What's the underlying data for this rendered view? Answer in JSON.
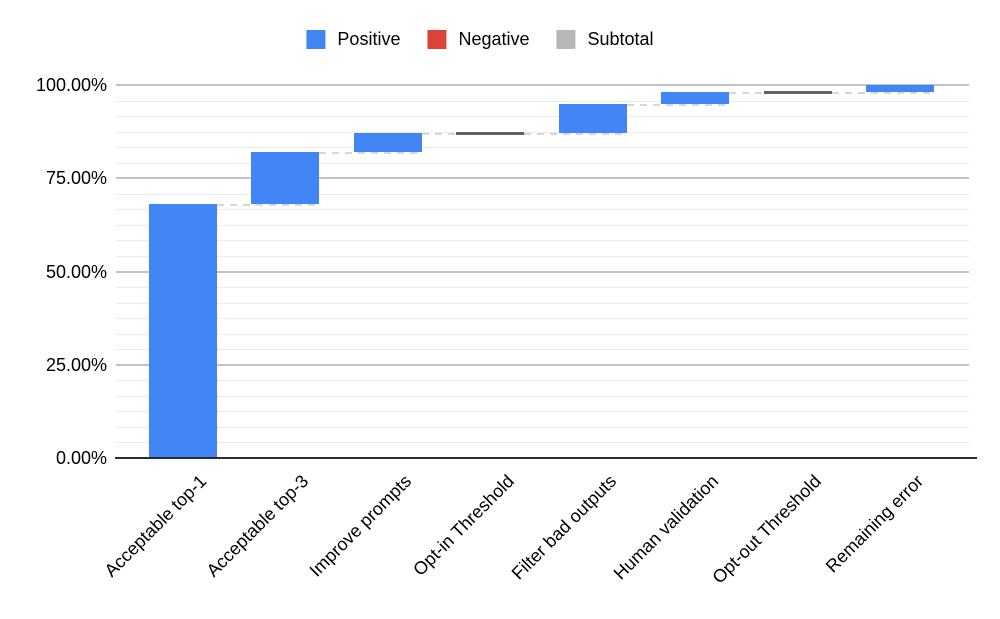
{
  "chart_data": {
    "type": "waterfall",
    "title": "",
    "categories": [
      "Acceptable top-1",
      "Acceptable top-3",
      "Improve prompts",
      "Opt-in Threshold",
      "Filter bad outputs",
      "Human validation",
      "Opt-out Threshold",
      "Remaining error"
    ],
    "bars": [
      {
        "category": "Acceptable top-1",
        "kind": "positive",
        "start": 0,
        "end": 68,
        "delta": 68
      },
      {
        "category": "Acceptable top-3",
        "kind": "positive",
        "start": 68,
        "end": 82,
        "delta": 14
      },
      {
        "category": "Improve prompts",
        "kind": "positive",
        "start": 82,
        "end": 87,
        "delta": 5
      },
      {
        "category": "Opt-in Threshold",
        "kind": "subtotal",
        "start": 87,
        "end": 87,
        "delta": 0
      },
      {
        "category": "Filter bad outputs",
        "kind": "positive",
        "start": 87,
        "end": 95,
        "delta": 8
      },
      {
        "category": "Human validation",
        "kind": "positive",
        "start": 95,
        "end": 98,
        "delta": 3
      },
      {
        "category": "Opt-out Threshold",
        "kind": "subtotal",
        "start": 98,
        "end": 98,
        "delta": 0
      },
      {
        "category": "Remaining error",
        "kind": "positive",
        "start": 98,
        "end": 100,
        "delta": 2
      }
    ],
    "y_axis": {
      "min": 0,
      "max": 100,
      "major_step": 25,
      "minor_divisions_per_major": 6,
      "unit": "percent"
    },
    "y_ticks": [
      "0.00%",
      "25.00%",
      "50.00%",
      "75.00%",
      "100.00%"
    ],
    "legend": [
      {
        "label": "Positive",
        "color": "#4285f4"
      },
      {
        "label": "Negative",
        "color": "#db4437"
      },
      {
        "label": "Subtotal",
        "color": "#b7b7b7"
      }
    ],
    "colors": {
      "positive_bar": "#4285f4",
      "negative_bar": "#db4437",
      "subtotal_line": "#616161",
      "connector": "#d6d6d6",
      "gridline_major": "#c3c3c3",
      "gridline_minor": "#ebebeb",
      "axis_line": "#2b2b2b",
      "text": "#000000"
    },
    "layout_hints": {
      "legend_position": "top",
      "grid": "on",
      "x_label_rotation_deg": -45
    }
  }
}
